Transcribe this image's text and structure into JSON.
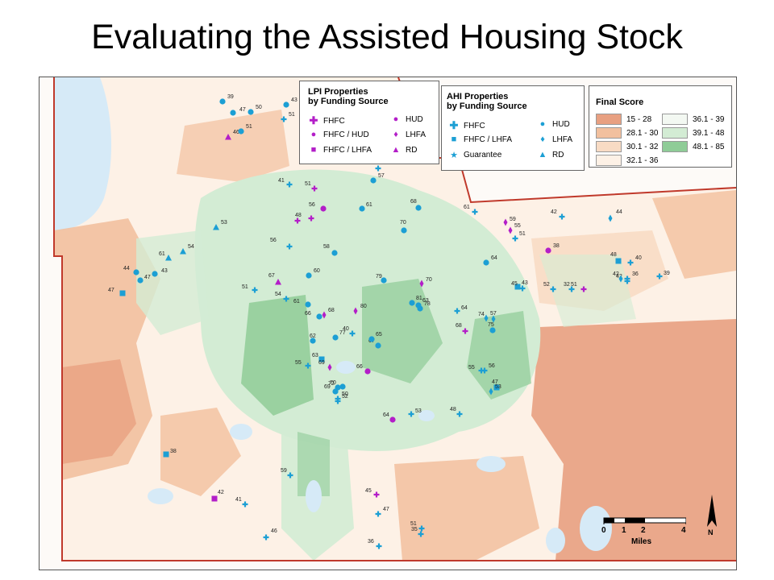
{
  "title": "Evaluating the Assisted Housing Stock",
  "colors": {
    "lpi": "#b31ec8",
    "ahi": "#1c9fd4",
    "boundary": "#c0392b"
  },
  "lpi_legend": {
    "title_line1": "LPI Properties",
    "title_line2": "by Funding Source",
    "items": [
      {
        "label": "FHFC",
        "icon": "plus-icon"
      },
      {
        "label": "FHFC / HUD",
        "icon": "circle-icon"
      },
      {
        "label": "FHFC / LHFA",
        "icon": "square-icon"
      },
      {
        "label": "HUD",
        "icon": "circle-icon"
      },
      {
        "label": "LHFA",
        "icon": "diamond-icon"
      },
      {
        "label": "RD",
        "icon": "triangle-icon"
      }
    ]
  },
  "ahi_legend": {
    "title_line1": "AHI Properties",
    "title_line2": "by Funding Source",
    "items": [
      {
        "label": "FHFC",
        "icon": "plus-icon"
      },
      {
        "label": "FHFC / LHFA",
        "icon": "square-icon"
      },
      {
        "label": "Guarantee",
        "icon": "star-icon"
      },
      {
        "label": "HUD",
        "icon": "circle-icon"
      },
      {
        "label": "LHFA",
        "icon": "diamond-icon"
      },
      {
        "label": "RD",
        "icon": "triangle-icon"
      }
    ]
  },
  "score_legend": {
    "title": "Final Score",
    "items": [
      {
        "label": "15 - 28",
        "color": "#e8a081"
      },
      {
        "label": "28.1 - 30",
        "color": "#f2c09e"
      },
      {
        "label": "30.1 - 32",
        "color": "#f8dbc4"
      },
      {
        "label": "32.1 - 36",
        "color": "#fdf1e6"
      },
      {
        "label": "36.1 - 39",
        "color": "#f3f8f2"
      },
      {
        "label": "39.1 - 48",
        "color": "#d3ecd4"
      },
      {
        "label": "48.1 - 85",
        "color": "#8fcc97"
      }
    ]
  },
  "scale": {
    "ticks": [
      "0",
      "1",
      "2",
      "4"
    ],
    "unit": "Miles",
    "north": "N"
  },
  "points": [
    {
      "t": "lpi",
      "s": "plus",
      "v": ""
    },
    {
      "t": "ahi",
      "s": "circle",
      "v": "39"
    },
    {
      "t": "ahi",
      "s": "circle",
      "v": "47"
    },
    {
      "t": "ahi",
      "s": "circle",
      "v": "50"
    },
    {
      "t": "ahi",
      "s": "circle",
      "v": "43"
    },
    {
      "t": "ahi",
      "s": "plus",
      "v": "51"
    },
    {
      "t": "lpi",
      "s": "triangle",
      "v": "46"
    },
    {
      "t": "ahi",
      "s": "circle",
      "v": "51"
    },
    {
      "t": "lpi",
      "s": "circle",
      "v": "52"
    },
    {
      "t": "ahi",
      "s": "plus",
      "v": "43"
    },
    {
      "t": "ahi",
      "s": "plus",
      "v": "41"
    },
    {
      "t": "lpi",
      "s": "plus",
      "v": "51"
    },
    {
      "t": "ahi",
      "s": "circle",
      "v": "57"
    },
    {
      "t": "ahi",
      "s": "triangle",
      "v": "53"
    },
    {
      "t": "ahi",
      "s": "triangle",
      "v": "54"
    },
    {
      "t": "ahi",
      "s": "triangle",
      "v": "61"
    },
    {
      "t": "ahi",
      "s": "circle",
      "v": "44"
    },
    {
      "t": "ahi",
      "s": "circle",
      "v": "43"
    },
    {
      "t": "ahi",
      "s": "square",
      "v": "47"
    },
    {
      "t": "ahi",
      "s": "circle",
      "v": "47"
    },
    {
      "t": "lpi",
      "s": "circle",
      "v": "56"
    },
    {
      "t": "lpi",
      "s": "plus",
      "v": "48"
    },
    {
      "t": "ahi",
      "s": "circle",
      "v": "61"
    },
    {
      "t": "ahi",
      "s": "circle",
      "v": "70"
    },
    {
      "t": "ahi",
      "s": "circle",
      "v": "68"
    },
    {
      "t": "ahi",
      "s": "plus",
      "v": "61"
    },
    {
      "t": "lpi",
      "s": "diamond",
      "v": "59"
    },
    {
      "t": "lpi",
      "s": "diamond",
      "v": "55"
    },
    {
      "t": "ahi",
      "s": "plus",
      "v": "51"
    },
    {
      "t": "ahi",
      "s": "plus",
      "v": "42"
    },
    {
      "t": "ahi",
      "s": "diamond",
      "v": "44"
    },
    {
      "t": "lpi",
      "s": "circle",
      "v": "38"
    },
    {
      "t": "ahi",
      "s": "square",
      "v": "48"
    },
    {
      "t": "ahi",
      "s": "plus",
      "v": "40"
    },
    {
      "t": "ahi",
      "s": "plus",
      "v": "42"
    },
    {
      "t": "ahi",
      "s": "plus",
      "v": "39"
    },
    {
      "t": "ahi",
      "s": "plus",
      "v": "56"
    },
    {
      "t": "ahi",
      "s": "circle",
      "v": "58"
    },
    {
      "t": "ahi",
      "s": "circle",
      "v": "60"
    },
    {
      "t": "lpi",
      "s": "triangle",
      "v": "67"
    },
    {
      "t": "ahi",
      "s": "plus",
      "v": "51"
    },
    {
      "t": "ahi",
      "s": "plus",
      "v": "54"
    },
    {
      "t": "ahi",
      "s": "circle",
      "v": "64"
    },
    {
      "t": "ahi",
      "s": "circle",
      "v": "79"
    },
    {
      "t": "lpi",
      "s": "diamond",
      "v": "70"
    },
    {
      "t": "ahi",
      "s": "circle",
      "v": "81"
    },
    {
      "t": "ahi",
      "s": "circle",
      "v": "78"
    },
    {
      "t": "ahi",
      "s": "circle",
      "v": "63"
    },
    {
      "t": "ahi",
      "s": "plus",
      "v": "64"
    },
    {
      "t": "ahi",
      "s": "diamond",
      "v": "74"
    },
    {
      "t": "ahi",
      "s": "circle",
      "v": "75"
    },
    {
      "t": "lpi",
      "s": "plus",
      "v": "68"
    },
    {
      "t": "lpi",
      "s": "diamond",
      "v": "80"
    },
    {
      "t": "lpi",
      "s": "diamond",
      "v": "68"
    },
    {
      "t": "ahi",
      "s": "circle",
      "v": "66"
    },
    {
      "t": "ahi",
      "s": "circle",
      "v": "61"
    },
    {
      "t": "ahi",
      "s": "circle",
      "v": "77"
    },
    {
      "t": "ahi",
      "s": "circle",
      "v": "62"
    },
    {
      "t": "ahi",
      "s": "plus",
      "v": "55"
    },
    {
      "t": "ahi",
      "s": "square",
      "v": "63"
    },
    {
      "t": "lpi",
      "s": "diamond",
      "v": "69"
    },
    {
      "t": "ahi",
      "s": "circle",
      "v": "67"
    },
    {
      "t": "lpi",
      "s": "circle",
      "v": "66"
    },
    {
      "t": "ahi",
      "s": "circle",
      "v": "72"
    },
    {
      "t": "ahi",
      "s": "circle",
      "v": "70"
    },
    {
      "t": "ahi",
      "s": "circle",
      "v": "69"
    },
    {
      "t": "ahi",
      "s": "plus",
      "v": "52"
    },
    {
      "t": "ahi",
      "s": "plus",
      "v": "50"
    },
    {
      "t": "lpi",
      "s": "circle",
      "v": "64"
    },
    {
      "t": "ahi",
      "s": "plus",
      "v": "53"
    },
    {
      "t": "ahi",
      "s": "plus",
      "v": "48"
    },
    {
      "t": "ahi",
      "s": "plus",
      "v": "55"
    },
    {
      "t": "ahi",
      "s": "plus",
      "v": "56"
    },
    {
      "t": "ahi",
      "s": "square",
      "v": "47"
    },
    {
      "t": "ahi",
      "s": "diamond",
      "v": "53"
    },
    {
      "t": "ahi",
      "s": "diamond",
      "v": "57"
    },
    {
      "t": "ahi",
      "s": "plus",
      "v": "52"
    },
    {
      "t": "ahi",
      "s": "square",
      "v": "38"
    },
    {
      "t": "ahi",
      "s": "plus",
      "v": "59"
    },
    {
      "t": "lpi",
      "s": "square",
      "v": "42"
    },
    {
      "t": "ahi",
      "s": "plus",
      "v": "41"
    },
    {
      "t": "ahi",
      "s": "plus",
      "v": "46"
    },
    {
      "t": "lpi",
      "s": "plus",
      "v": "45"
    },
    {
      "t": "ahi",
      "s": "plus",
      "v": "47"
    },
    {
      "t": "ahi",
      "s": "plus",
      "v": "51"
    },
    {
      "t": "ahi",
      "s": "plus",
      "v": "35"
    },
    {
      "t": "ahi",
      "s": "plus",
      "v": "36"
    },
    {
      "t": "ahi",
      "s": "square",
      "v": "43"
    },
    {
      "t": "ahi",
      "s": "plus",
      "v": "45"
    },
    {
      "t": "lpi",
      "s": "plus",
      "v": "51"
    },
    {
      "t": "ahi",
      "s": "plus",
      "v": "32"
    },
    {
      "t": "ahi",
      "s": "plus",
      "v": "36"
    },
    {
      "t": "ahi",
      "s": "diamond",
      "v": "42"
    },
    {
      "t": "ahi",
      "s": "plus",
      "v": "40"
    },
    {
      "t": "ahi",
      "s": "circle",
      "v": "65"
    },
    {
      "t": "lpi",
      "s": "circle",
      "v": "59"
    }
  ]
}
